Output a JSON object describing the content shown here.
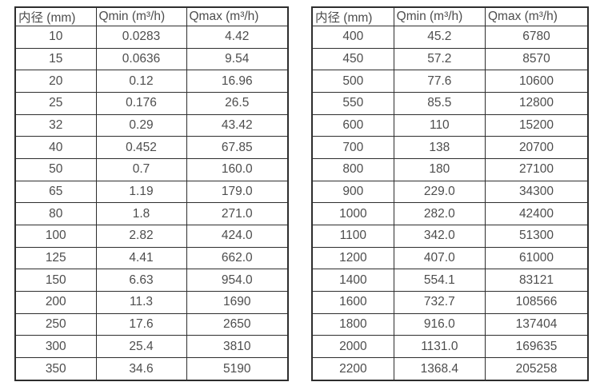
{
  "page": {
    "background": "#ffffff",
    "text_color": "#4d4d4d",
    "border_color": "#2e2e2e"
  },
  "tables": [
    {
      "name": "small-diameters",
      "headers": [
        "内径 (mm)",
        "Qmin (m³/h)",
        "Qmax (m³/h)"
      ],
      "rows": [
        [
          "10",
          "0.0283",
          "4.42"
        ],
        [
          "15",
          "0.0636",
          "9.54"
        ],
        [
          "20",
          "0.12",
          "16.96"
        ],
        [
          "25",
          "0.176",
          "26.5"
        ],
        [
          "32",
          "0.29",
          "43.42"
        ],
        [
          "40",
          "0.452",
          "67.85"
        ],
        [
          "50",
          "0.7",
          "160.0"
        ],
        [
          "65",
          "1.19",
          "179.0"
        ],
        [
          "80",
          "1.8",
          "271.0"
        ],
        [
          "100",
          "2.82",
          "424.0"
        ],
        [
          "125",
          "4.41",
          "662.0"
        ],
        [
          "150",
          "6.63",
          "954.0"
        ],
        [
          "200",
          "11.3",
          "1690"
        ],
        [
          "250",
          "17.6",
          "2650"
        ],
        [
          "300",
          "25.4",
          "3810"
        ],
        [
          "350",
          "34.6",
          "5190"
        ]
      ]
    },
    {
      "name": "large-diameters",
      "headers": [
        "内径 (mm)",
        "Qmin (m³/h)",
        "Qmax (m³/h)"
      ],
      "rows": [
        [
          "400",
          "45.2",
          "6780"
        ],
        [
          "450",
          "57.2",
          "8570"
        ],
        [
          "500",
          "77.6",
          "10600"
        ],
        [
          "550",
          "85.5",
          "12800"
        ],
        [
          "600",
          "110",
          "15200"
        ],
        [
          "700",
          "138",
          "20700"
        ],
        [
          "800",
          "180",
          "27100"
        ],
        [
          "900",
          "229.0",
          "34300"
        ],
        [
          "1000",
          "282.0",
          "42400"
        ],
        [
          "1100",
          "342.0",
          "51300"
        ],
        [
          "1200",
          "407.0",
          "61000"
        ],
        [
          "1400",
          "554.1",
          "83121"
        ],
        [
          "1600",
          "732.7",
          "108566"
        ],
        [
          "1800",
          "916.0",
          "137404"
        ],
        [
          "2000",
          "1131.0",
          "169635"
        ],
        [
          "2200",
          "1368.4",
          "205258"
        ]
      ]
    }
  ]
}
